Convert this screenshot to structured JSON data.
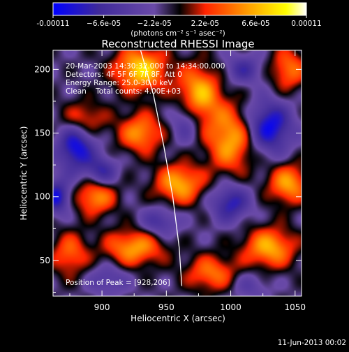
{
  "chart_data": {
    "type": "heatmap",
    "title": "Reconstructed RHESSI Image",
    "xlabel": "Heliocentric X (arcsec)",
    "ylabel": "Heliocentric Y (arcsec)",
    "xlim": [
      862,
      1055
    ],
    "ylim": [
      22,
      215
    ],
    "x_ticks": [
      900,
      950,
      1000,
      1050
    ],
    "y_ticks": [
      50,
      100,
      150,
      200
    ],
    "colorbar": {
      "range": [
        -0.00011,
        0.00011
      ],
      "tick_values": [
        -0.00011,
        -6.6e-05,
        -2.2e-05,
        2.2e-05,
        6.6e-05,
        0.00011
      ],
      "tick_labels": [
        "-0.00011",
        "−6.6e-05",
        "−2.2e-05",
        "2.2e-05",
        "6.6e-05",
        "0.00011"
      ],
      "units_label": "(photons cm⁻² s⁻¹ asec⁻²)",
      "colors": [
        "#0000ff",
        "#3f2a9a",
        "#6a4aa8",
        "#000000",
        "#ff2200",
        "#ffa500",
        "#ffff00",
        "#ffffff"
      ]
    },
    "info_lines": [
      "20-Mar-2003 14:30:32.000 to 14:34:00.000",
      "Detectors: 4F 5F 6F 7F 8F, Att 0",
      "Energy Range: 25.0-30.0 keV",
      "Clean    Total counts: 4.00E+03"
    ],
    "peak_label": "Position of Peak = [928,206]",
    "peak": [
      928,
      206
    ],
    "limb_curve": [
      [
        930,
        215
      ],
      [
        940,
        180
      ],
      [
        948,
        140
      ],
      [
        955,
        100
      ],
      [
        960,
        60
      ],
      [
        962,
        30
      ]
    ],
    "features": [
      {
        "x": 930,
        "y": 200,
        "amp": 9.5e-05,
        "sx": 14,
        "sy": 12
      },
      {
        "x": 975,
        "y": 180,
        "amp": 8.5e-05,
        "sx": 12,
        "sy": 16
      },
      {
        "x": 885,
        "y": 160,
        "amp": 6e-05,
        "sx": 12,
        "sy": 10
      },
      {
        "x": 930,
        "y": 150,
        "amp": 7e-05,
        "sx": 12,
        "sy": 11
      },
      {
        "x": 1000,
        "y": 145,
        "amp": 8e-05,
        "sx": 13,
        "sy": 18
      },
      {
        "x": 960,
        "y": 110,
        "amp": 8e-05,
        "sx": 13,
        "sy": 11
      },
      {
        "x": 895,
        "y": 100,
        "amp": 7e-05,
        "sx": 11,
        "sy": 10
      },
      {
        "x": 1045,
        "y": 110,
        "amp": 7.5e-05,
        "sx": 11,
        "sy": 11
      },
      {
        "x": 1030,
        "y": 60,
        "amp": 8e-05,
        "sx": 14,
        "sy": 11
      },
      {
        "x": 925,
        "y": 60,
        "amp": 7.5e-05,
        "sx": 16,
        "sy": 10
      },
      {
        "x": 985,
        "y": 40,
        "amp": 6e-05,
        "sx": 14,
        "sy": 10
      },
      {
        "x": 1045,
        "y": 200,
        "amp": 6e-05,
        "sx": 10,
        "sy": 12
      },
      {
        "x": 875,
        "y": 55,
        "amp": 5.5e-05,
        "sx": 10,
        "sy": 12
      },
      {
        "x": 880,
        "y": 140,
        "amp": -9e-05,
        "sx": 10,
        "sy": 14
      },
      {
        "x": 900,
        "y": 120,
        "amp": -6e-05,
        "sx": 8,
        "sy": 8
      },
      {
        "x": 1030,
        "y": 155,
        "amp": -9e-05,
        "sx": 12,
        "sy": 14
      },
      {
        "x": 965,
        "y": 160,
        "amp": -5e-05,
        "sx": 8,
        "sy": 12
      },
      {
        "x": 945,
        "y": 80,
        "amp": -5e-05,
        "sx": 10,
        "sy": 8
      },
      {
        "x": 1000,
        "y": 95,
        "amp": -7e-05,
        "sx": 10,
        "sy": 10
      },
      {
        "x": 865,
        "y": 100,
        "amp": -8e-05,
        "sx": 7,
        "sy": 9
      },
      {
        "x": 1010,
        "y": 200,
        "amp": -5e-05,
        "sx": 10,
        "sy": 8
      },
      {
        "x": 905,
        "y": 35,
        "amp": -4e-05,
        "sx": 10,
        "sy": 8
      },
      {
        "x": 1015,
        "y": 30,
        "amp": -3e-05,
        "sx": 10,
        "sy": 8
      }
    ]
  },
  "footer": {
    "date": "11-Jun-2013 00:02"
  }
}
